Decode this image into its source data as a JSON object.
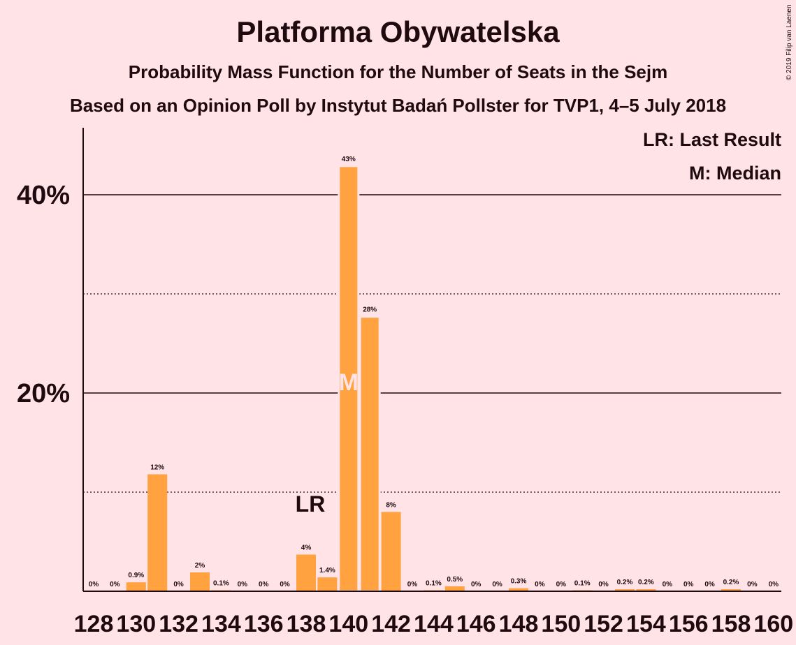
{
  "chart_data": {
    "type": "bar",
    "title": "Platforma Obywatelska",
    "subtitle": "Probability Mass Function for the Number of Seats in the Sejm",
    "subtitle2": "Based on an Opinion Poll by Instytut Badań Pollster for TVP1, 4–5 July 2018",
    "copyright": "© 2019 Filip van Laenen",
    "legend": {
      "last_result": "LR: Last Result",
      "median": "M: Median"
    },
    "y_tick_labels": [
      {
        "value": 40,
        "label": "40%"
      },
      {
        "value": 20,
        "label": "20%"
      }
    ],
    "ylim": [
      0,
      46
    ],
    "categories": [
      128,
      129,
      130,
      131,
      132,
      133,
      134,
      135,
      136,
      137,
      138,
      139,
      140,
      141,
      142,
      143,
      144,
      145,
      146,
      147,
      148,
      149,
      150,
      151,
      152,
      153,
      154,
      155,
      156,
      157,
      158,
      159,
      160
    ],
    "x_tick_labels": [
      "128",
      "130",
      "132",
      "134",
      "136",
      "138",
      "140",
      "142",
      "144",
      "146",
      "148",
      "150",
      "152",
      "154",
      "156",
      "158",
      "160"
    ],
    "values": [
      0,
      0,
      0.9,
      11.8,
      0,
      1.9,
      0.1,
      0,
      0,
      0,
      3.7,
      1.4,
      42.9,
      27.7,
      8,
      0,
      0.1,
      0.5,
      0,
      0,
      0.3,
      0,
      0,
      0.1,
      0,
      0.2,
      0.2,
      0,
      0,
      0,
      0.2,
      0,
      0
    ],
    "value_labels": [
      "0%",
      "0%",
      "0.9%",
      "12%",
      "0%",
      "2%",
      "0.1%",
      "0%",
      "0%",
      "0%",
      "4%",
      "1.4%",
      "43%",
      "28%",
      "8%",
      "0%",
      "0.1%",
      "0.5%",
      "0%",
      "0%",
      "0.3%",
      "0%",
      "0%",
      "0.1%",
      "0%",
      "0.2%",
      "0.2%",
      "0%",
      "0%",
      "0%",
      "0.2%",
      "0%",
      "0%"
    ],
    "last_result": {
      "seat": 138,
      "label": "LR"
    },
    "median": {
      "seat": 140,
      "label": "M"
    },
    "colors": {
      "bar": "#ffa23f",
      "text": "#1e0a0f",
      "background": "#ffe3e6",
      "median_text": "#ffe3e6"
    }
  }
}
